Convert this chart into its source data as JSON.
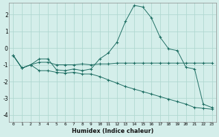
{
  "xlabel": "Humidex (Indice chaleur)",
  "bg_color": "#d4eeea",
  "line_color": "#1a6b60",
  "grid_color": "#b0d8d0",
  "xlim": [
    -0.5,
    23.5
  ],
  "ylim": [
    -4.4,
    2.7
  ],
  "xticks": [
    0,
    1,
    2,
    3,
    4,
    5,
    6,
    7,
    8,
    9,
    10,
    11,
    12,
    13,
    14,
    15,
    16,
    17,
    18,
    19,
    20,
    21,
    22,
    23
  ],
  "yticks": [
    -4,
    -3,
    -2,
    -1,
    0,
    1,
    2
  ],
  "line1_x": [
    0,
    1,
    2,
    3,
    4,
    5,
    6,
    7,
    8,
    9,
    10,
    11,
    12,
    13,
    14,
    15,
    16,
    17,
    18,
    19,
    20,
    21,
    22,
    23
  ],
  "line1_y": [
    -0.45,
    -1.2,
    -1.0,
    -0.65,
    -0.65,
    -1.3,
    -1.35,
    -1.25,
    -1.35,
    -1.25,
    -0.65,
    -0.3,
    0.35,
    1.6,
    2.55,
    2.45,
    1.8,
    0.65,
    -0.05,
    -0.15,
    -1.15,
    -1.25,
    -3.35,
    -3.55
  ],
  "line2_x": [
    0,
    1,
    2,
    3,
    4,
    5,
    6,
    7,
    8,
    9,
    10,
    11,
    12,
    13,
    14,
    15,
    16,
    17,
    18,
    19,
    20,
    21,
    22,
    23
  ],
  "line2_y": [
    -0.45,
    -1.2,
    -1.0,
    -0.85,
    -0.85,
    -1.0,
    -1.0,
    -1.0,
    -0.95,
    -1.0,
    -0.95,
    -0.95,
    -0.9,
    -0.9,
    -0.9,
    -0.9,
    -0.9,
    -0.9,
    -0.9,
    -0.9,
    -0.9,
    -0.9,
    -0.9,
    -0.9
  ],
  "line3_x": [
    0,
    1,
    2,
    3,
    4,
    5,
    6,
    7,
    8,
    9,
    10,
    11,
    12,
    13,
    14,
    15,
    16,
    17,
    18,
    19,
    20,
    21,
    22,
    23
  ],
  "line3_y": [
    -0.45,
    -1.2,
    -1.0,
    -1.35,
    -1.35,
    -1.45,
    -1.5,
    -1.45,
    -1.55,
    -1.55,
    -1.7,
    -1.9,
    -2.1,
    -2.3,
    -2.45,
    -2.6,
    -2.75,
    -2.9,
    -3.05,
    -3.2,
    -3.35,
    -3.55,
    -3.6,
    -3.65
  ]
}
